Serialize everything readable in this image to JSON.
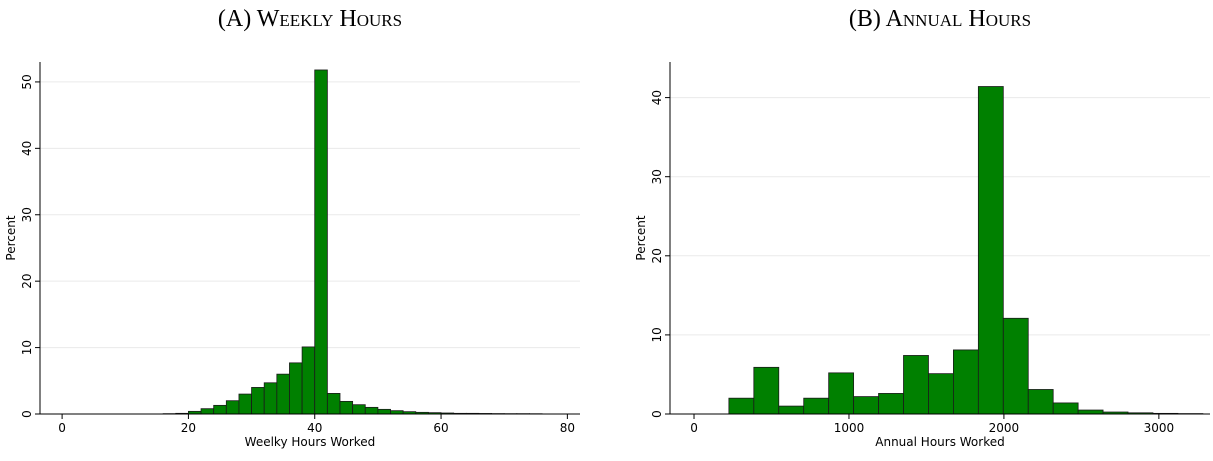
{
  "chart_data": [
    {
      "type": "histogram",
      "title": "(A) Weekly Hours",
      "xlabel": "Weelky Hours Worked",
      "ylabel": "Percent",
      "bins": [
        16,
        18,
        20,
        22,
        24,
        26,
        28,
        30,
        32,
        34,
        36,
        38,
        40,
        42,
        44,
        46,
        48,
        50,
        52,
        54,
        56,
        58,
        60,
        62,
        64,
        66,
        68,
        70,
        72,
        74,
        76
      ],
      "values": [
        0.05,
        0.1,
        0.4,
        0.8,
        1.3,
        2.0,
        3.0,
        4.0,
        4.7,
        6.0,
        7.7,
        10.1,
        51.8,
        3.1,
        1.9,
        1.4,
        1.0,
        0.7,
        0.5,
        0.35,
        0.25,
        0.2,
        0.15,
        0.1,
        0.1,
        0.08,
        0.06,
        0.05,
        0.05,
        0.04
      ],
      "color": "#008000",
      "xlim": [
        -3.5,
        82
      ],
      "ylim": [
        0,
        53
      ],
      "xticks": [
        0,
        20,
        40,
        60,
        80
      ],
      "yticks": [
        0,
        10,
        20,
        30,
        40,
        50
      ],
      "grid": true
    },
    {
      "type": "histogram",
      "title": "(B) Annual Hours",
      "xlabel": "Annual Hours Worked",
      "ylabel": "Percent",
      "bins": [
        225,
        386,
        547,
        708,
        869,
        1030,
        1191,
        1352,
        1513,
        1674,
        1835,
        1996,
        2157,
        2318,
        2479,
        2640,
        2801,
        2962,
        3123,
        3284
      ],
      "values": [
        2.0,
        5.9,
        1.0,
        2.0,
        5.2,
        2.2,
        2.6,
        7.4,
        5.1,
        8.1,
        41.4,
        12.1,
        3.1,
        1.4,
        0.5,
        0.25,
        0.15,
        0.08,
        0.05
      ],
      "color": "#008000",
      "xlim": [
        -155,
        3330
      ],
      "ylim": [
        0,
        44.5
      ],
      "xticks": [
        0,
        1000,
        2000,
        3000
      ],
      "yticks": [
        0,
        10,
        20,
        30,
        40
      ],
      "grid": true
    }
  ]
}
